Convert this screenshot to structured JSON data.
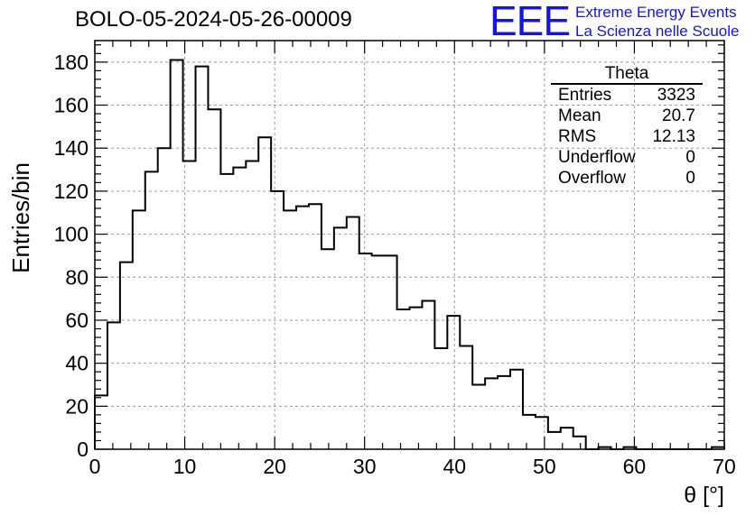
{
  "title": "BOLO-05-2024-05-26-00009",
  "logo": {
    "mark": "EEE",
    "line1": "Extreme Energy Events",
    "line2": "La Scienza nelle Scuole",
    "color": "#1414e0"
  },
  "stats": {
    "name": "Theta",
    "rows": [
      {
        "label": "Entries",
        "value": "3323"
      },
      {
        "label": "Mean",
        "value": "20.7"
      },
      {
        "label": "RMS",
        "value": "12.13"
      },
      {
        "label": "Underflow",
        "value": "0"
      },
      {
        "label": "Overflow",
        "value": "0"
      }
    ]
  },
  "chart_data": {
    "type": "histogram",
    "xlabel": "θ [°]",
    "ylabel": "Entries/bin",
    "xlim": [
      0,
      70
    ],
    "ylim": [
      0,
      190
    ],
    "grid": true,
    "bin_width": 1.4,
    "bin_edges_start": 0,
    "x_ticks": [
      0,
      10,
      20,
      30,
      40,
      50,
      60,
      70
    ],
    "y_ticks": [
      0,
      20,
      40,
      60,
      80,
      100,
      120,
      140,
      160,
      180
    ],
    "values": [
      25,
      59,
      87,
      111,
      129,
      140,
      181,
      134,
      178,
      158,
      128,
      131,
      134,
      145,
      120,
      111,
      113,
      114,
      93,
      103,
      108,
      91,
      90,
      90,
      65,
      66,
      69,
      47,
      62,
      48,
      30,
      33,
      34,
      37,
      16,
      15,
      8,
      10,
      6,
      0,
      1,
      0,
      1,
      0,
      0,
      0,
      0,
      0,
      0,
      1
    ]
  }
}
